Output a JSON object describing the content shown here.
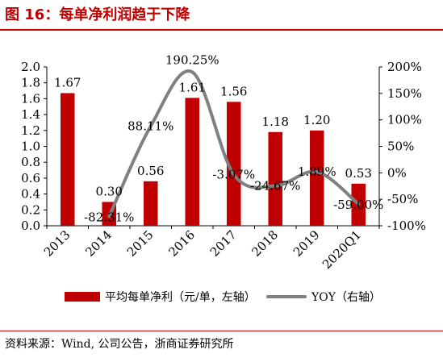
{
  "header": {
    "title": "图 16：每单净利润趋于下降"
  },
  "source": {
    "text": "资料来源：Wind, 公司公告，浙商证券研究所"
  },
  "colors": {
    "bar": "#c00000",
    "line": "#808080",
    "accent": "#c00000"
  },
  "chart_data": {
    "type": "bar",
    "title": "",
    "categories": [
      "2013",
      "2014",
      "2015",
      "2016",
      "2017",
      "2018",
      "2019",
      "2020Q1"
    ],
    "series": [
      {
        "name": "平均每单净利（元/单，左轴）",
        "type": "bar",
        "axis": "left",
        "values": [
          1.67,
          0.3,
          0.56,
          1.61,
          1.56,
          1.18,
          1.2,
          0.53
        ],
        "labels": [
          "1.67",
          "0.30",
          "0.56",
          "1.61",
          "1.56",
          "1.18",
          "1.20",
          "0.53"
        ]
      },
      {
        "name": "YOY（右轴）",
        "type": "line",
        "axis": "right",
        "values": [
          null,
          -82.31,
          88.11,
          190.25,
          -3.07,
          -24.67,
          1.89,
          -59.0
        ],
        "labels": [
          "",
          "-82.31%",
          "88.11%",
          "190.25%",
          "-3.07%",
          "-24.67%",
          "1.89%",
          "-59.00%"
        ]
      }
    ],
    "y_left": {
      "ylim": [
        0,
        2.0
      ],
      "ticks": [
        "0.0",
        "0.2",
        "0.4",
        "0.6",
        "0.8",
        "1.0",
        "1.2",
        "1.4",
        "1.6",
        "1.8",
        "2.0"
      ]
    },
    "y_right": {
      "ylim": [
        -100,
        200
      ],
      "ticks": [
        "-100%",
        "-50%",
        "0%",
        "50%",
        "100%",
        "150%",
        "200%"
      ]
    },
    "grid": false,
    "legend_position": "bottom"
  }
}
